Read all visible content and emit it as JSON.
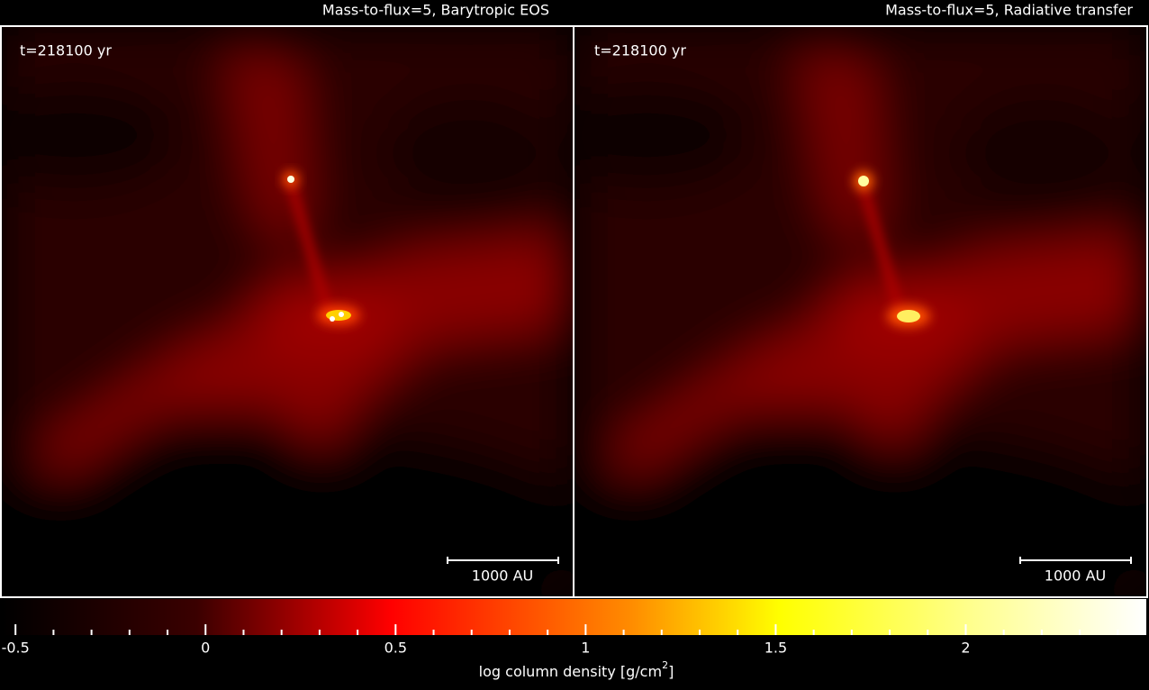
{
  "panels": [
    {
      "title": "Mass-to-flux=5, Barytropic EOS",
      "time_label": "t=218100 yr",
      "scale_label": "1000 AU"
    },
    {
      "title": "Mass-to-flux=5, Radiative transfer",
      "time_label": "t=218100 yr",
      "scale_label": "1000 AU"
    }
  ],
  "colorbar": {
    "label": [
      "log column density [g/cm",
      "2",
      "]"
    ],
    "xlim": [
      -0.536,
      2.475
    ],
    "ticks": [
      -0.5,
      0,
      0.5,
      1,
      1.5,
      2
    ],
    "minor_ticks": [
      -0.4,
      -0.3,
      -0.2,
      -0.1,
      0.1,
      0.2,
      0.3,
      0.4,
      0.6,
      0.7,
      0.8,
      0.9,
      1.1,
      1.2,
      1.3,
      1.4,
      1.6,
      1.7,
      1.8,
      1.9,
      2.1,
      2.2,
      2.3,
      2.4
    ]
  }
}
